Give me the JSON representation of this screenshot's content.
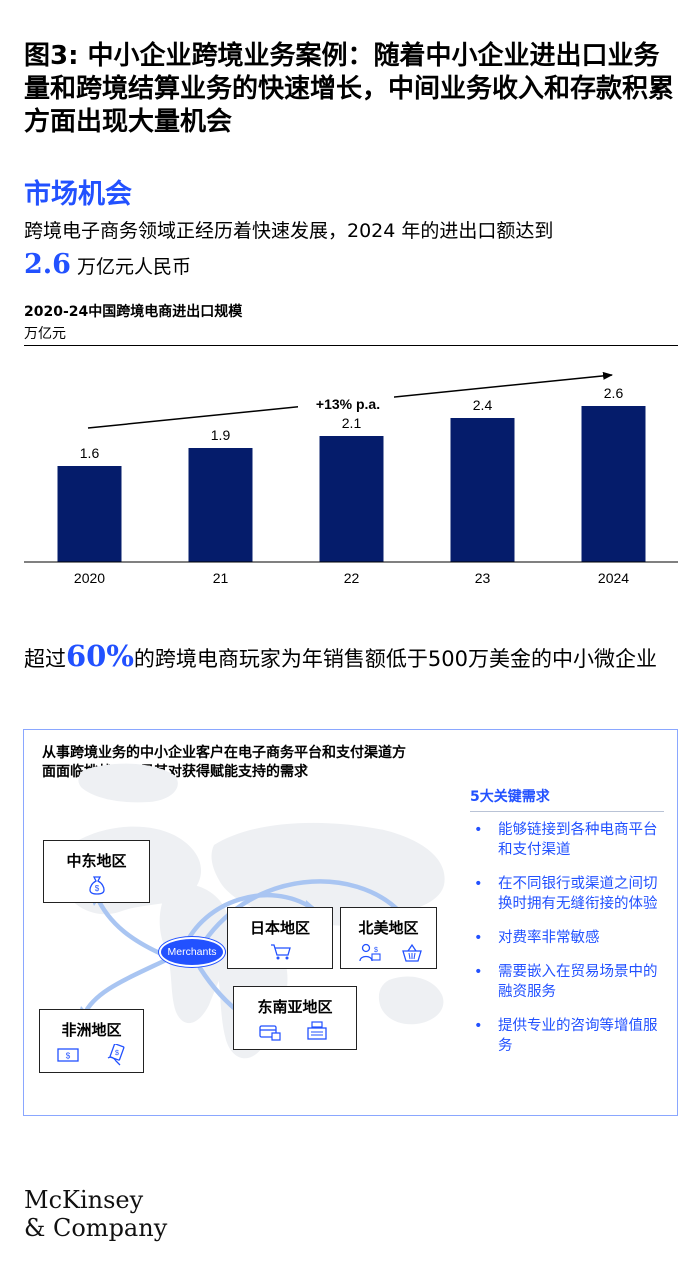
{
  "title": "图3: 中小企业跨境业务案例：随着中小企业进出口业务量和跨境结算业务的快速增长，中间业务收入和存款积累方面出现大量机会",
  "section_heading": "市场机会",
  "intro": {
    "text_before": "跨境电子商务领域正经历着快速发展，2024 年的进出口额达到",
    "value": "2.6",
    "text_after": " 万亿元人民币"
  },
  "chart_data": {
    "type": "bar",
    "title": "2020-24中国跨境电商进出口规模",
    "ylabel": "万亿元",
    "xlabel": "",
    "categories": [
      "2020",
      "21",
      "22",
      "23",
      "2024"
    ],
    "values": [
      1.6,
      1.9,
      2.1,
      2.4,
      2.6
    ],
    "ylim": [
      0,
      3.1
    ],
    "annotation": "+13% p.a.",
    "bar_color": "#051c6b",
    "grid": false
  },
  "stat": {
    "text_before": "超过",
    "value": "60%",
    "text_after": "的跨境电商玩家为年销售额低于500万美金的中小微企业"
  },
  "panel": {
    "heading": "从事跨境业务的中小企业客户在电子商务平台和支付渠道方面面临挑战，凸显其对获得赋能支持的需求",
    "merchants_label": "Merchants",
    "regions": {
      "middle_east": "中东地区",
      "japan": "日本地区",
      "north_america": "北美地区",
      "southeast_asia": "东南亚地区",
      "africa": "非洲地区"
    },
    "needs_title": "5大关键需求",
    "needs": [
      "能够链接到各种电商平台和支付渠道",
      "在不同银行或渠道之间切换时拥有无缝衔接的体验",
      "对费率非常敏感",
      "需要嵌入在贸易场景中的融资服务",
      "提供专业的咨询等增值服务"
    ]
  },
  "logo": {
    "line1": "McKinsey",
    "line2": "& Company"
  },
  "colors": {
    "accent": "#2251ff",
    "bar": "#051c6b",
    "arrow": "#a9c5f2",
    "panel_border": "#8aa7ff"
  }
}
